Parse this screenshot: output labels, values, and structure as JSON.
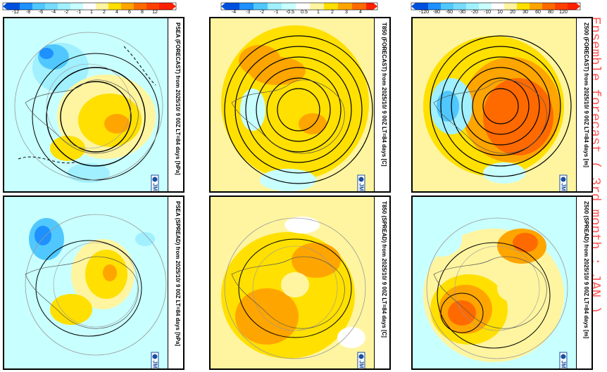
{
  "page_title": "Ensemble forecast ( 3rd month : JAN )",
  "colorbars": [
    {
      "name": "psea",
      "ticks": [
        "-12",
        "-8",
        "-6",
        "-4",
        "-2",
        "-1",
        "1",
        "2",
        "4",
        "6",
        "8",
        "12"
      ]
    },
    {
      "name": "t850",
      "ticks": [
        "-4",
        "-3",
        "-2",
        "-1",
        "-0.5",
        "0.5",
        "1",
        "2",
        "3",
        "4"
      ]
    },
    {
      "name": "z500",
      "ticks": [
        "-120",
        "-80",
        "-60",
        "-30",
        "-20",
        "-10",
        "10",
        "20",
        "30",
        "60",
        "80",
        "120"
      ]
    }
  ],
  "colors": {
    "ocean_bg": "#c8ffff",
    "pos1": "#fff5a0",
    "pos2": "#ffe000",
    "pos3": "#ffa500",
    "pos4": "#ff6a00",
    "pos5": "#ff2000",
    "neg1": "#a0f0ff",
    "neg2": "#50c8ff",
    "neg3": "#1e90ff",
    "neg4": "#0050e0",
    "title_red": "#ff5a5a",
    "jma_blue": "#1a4fa0"
  },
  "panels": {
    "psea_forecast": {
      "label": "PSEA (FORECAST)   from  2025/10/ 9 00Z LT=84 days  [hPa]"
    },
    "psea_spread": {
      "label": "PSEA (SPREAD)   from  2025/10/ 9 00Z LT=84 days  [hPa]"
    },
    "t850_forecast": {
      "label": "T850 (FORECAST)   from  2025/10/ 9 00Z LT=84 days  [C]"
    },
    "t850_spread": {
      "label": "T850 (SPREAD)   from  2025/10/ 9 00Z LT=84 days  [C]"
    },
    "z500_forecast": {
      "label": "Z500 (FORECAST)   from  2025/10/ 9 00Z LT=84 days  [m]"
    },
    "z500_spread": {
      "label": "Z500 (SPREAD)   from  2025/10/ 9 00Z LT=84 days  [m]"
    }
  },
  "logo_text": "JMA"
}
